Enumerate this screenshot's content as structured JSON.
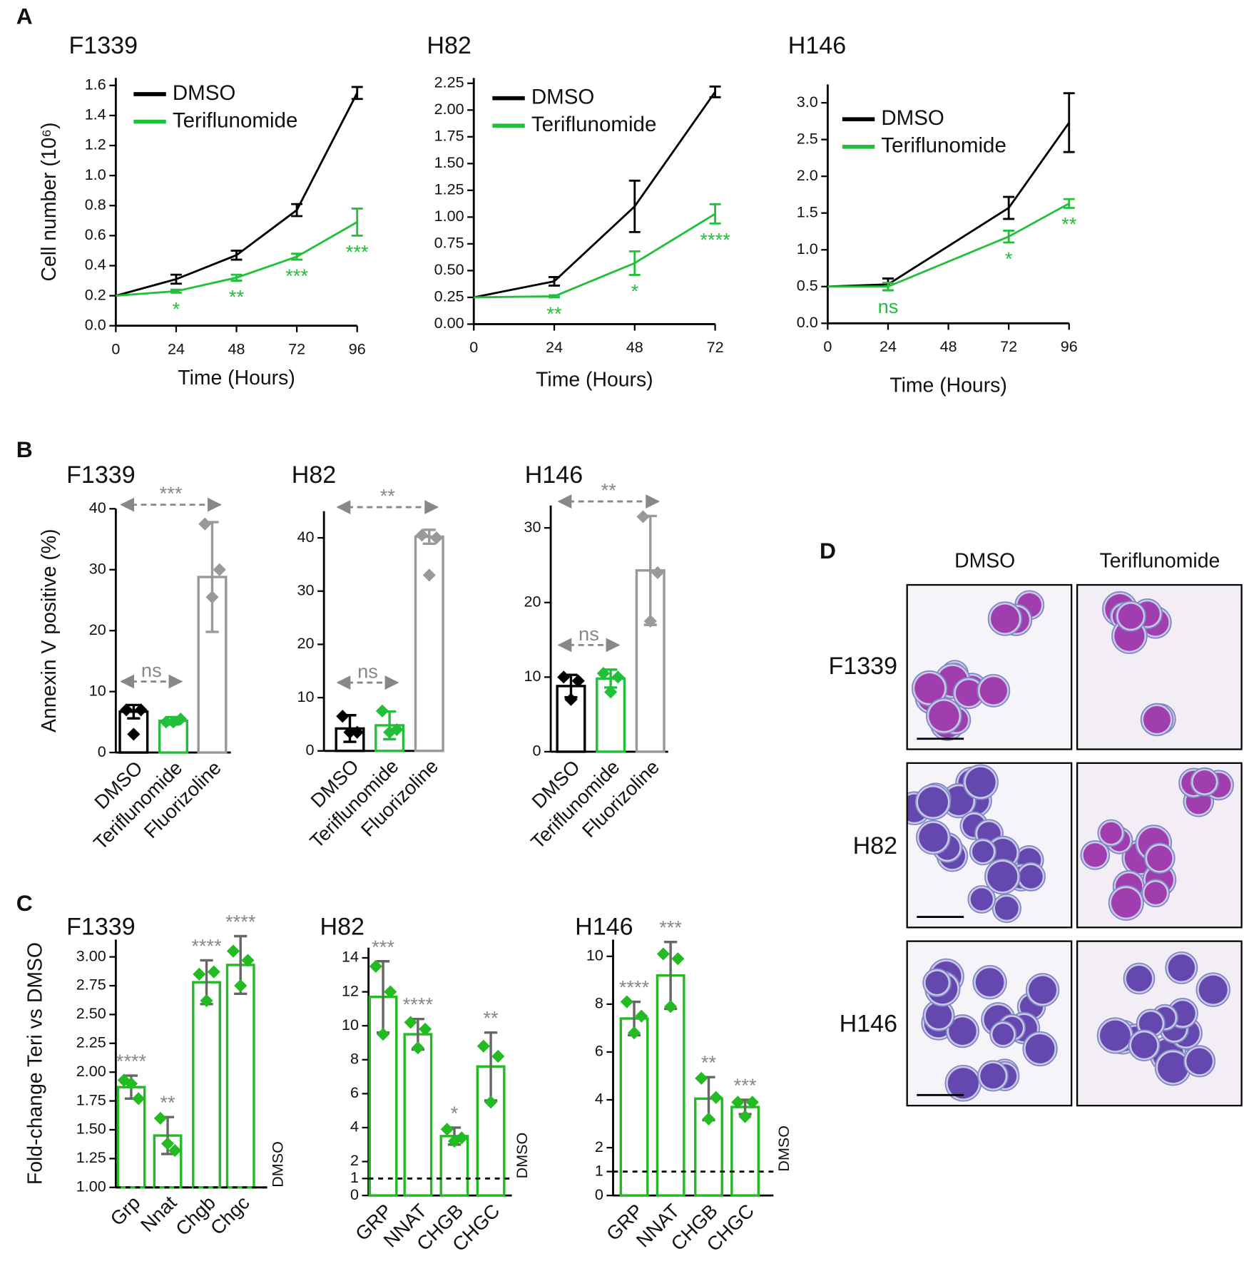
{
  "panel_labels": [
    "A",
    "B",
    "C",
    "D"
  ],
  "chart_data": [
    {
      "type": "line",
      "title": "F1339",
      "xlabel": "Time (Hours)",
      "ylabel": "Cell number (10⁶)",
      "x": [
        0,
        24,
        48,
        72,
        96
      ],
      "xlim": [
        0,
        96
      ],
      "xticks": [
        0,
        24,
        48,
        72,
        96
      ],
      "ylim": [
        0,
        1.65
      ],
      "yticks": [
        {
          "value": 0,
          "label": "0.0"
        },
        0.2,
        0.4,
        0.6,
        0.8,
        {
          "value": 1,
          "label": "1.0"
        },
        1.2,
        1.4,
        1.6
      ],
      "legend": "upper left",
      "series": [
        {
          "name": "DMSO",
          "color": "#000000",
          "values": [
            0.2,
            0.31,
            0.47,
            0.77,
            1.55
          ],
          "errors": [
            null,
            0.03,
            0.03,
            0.04,
            0.04
          ]
        },
        {
          "name": "Teriflunomide",
          "color": "#22c03a",
          "values": [
            0.2,
            0.23,
            0.32,
            0.46,
            0.69
          ],
          "errors": [
            null,
            0.01,
            0.02,
            0.02,
            0.09
          ],
          "significance": [
            null,
            "*",
            "**",
            "***",
            "***"
          ]
        }
      ]
    },
    {
      "type": "line",
      "title": "H82",
      "xlabel": "Time (Hours)",
      "x": [
        0,
        24,
        48,
        72
      ],
      "xlim": [
        0,
        72
      ],
      "xticks": [
        0,
        24,
        48,
        72
      ],
      "ylim": [
        0,
        2.3
      ],
      "yticks": [
        {
          "value": 0,
          "label": "0.00"
        },
        0.25,
        {
          "value": 0.5,
          "label": "0.50"
        },
        0.75,
        {
          "value": 1,
          "label": "1.00"
        },
        1.25,
        {
          "value": 1.5,
          "label": "1.50"
        },
        1.75,
        {
          "value": 2,
          "label": "2.00"
        },
        2.25
      ],
      "legend": "upper left",
      "series": [
        {
          "name": "DMSO",
          "color": "#000000",
          "values": [
            0.25,
            0.4,
            1.1,
            2.17
          ],
          "errors": [
            null,
            0.04,
            0.24,
            0.05
          ]
        },
        {
          "name": "Teriflunomide",
          "color": "#22c03a",
          "values": [
            0.25,
            0.26,
            0.57,
            1.03
          ],
          "errors": [
            null,
            0.01,
            0.11,
            0.09
          ],
          "significance": [
            null,
            "**",
            "*",
            "****"
          ]
        }
      ]
    },
    {
      "type": "line",
      "title": "H146",
      "xlabel": "Time (Hours)",
      "x": [
        0,
        24,
        72,
        96
      ],
      "xlim": [
        0,
        96
      ],
      "xticks": [
        0,
        24,
        48,
        72,
        96
      ],
      "ylim": [
        0,
        3.25
      ],
      "yticks": [
        {
          "value": 0,
          "label": "0.0"
        },
        0.5,
        {
          "value": 1,
          "label": "1.0"
        },
        1.5,
        {
          "value": 2,
          "label": "2.0"
        },
        2.5,
        {
          "value": 3,
          "label": "3.0"
        }
      ],
      "legend": "upper left",
      "series": [
        {
          "name": "DMSO",
          "color": "#000000",
          "values": [
            0.5,
            0.53,
            1.57,
            2.73
          ],
          "errors": [
            null,
            0.08,
            0.15,
            0.4
          ]
        },
        {
          "name": "Teriflunomide",
          "color": "#22c03a",
          "values": [
            0.5,
            0.5,
            1.18,
            1.63
          ],
          "errors": [
            null,
            0.05,
            0.08,
            0.06
          ],
          "significance": [
            null,
            "ns",
            "*",
            "**"
          ]
        }
      ]
    },
    {
      "type": "bar",
      "title": "F1339",
      "ylabel": "Annexin V positive (%)",
      "categories": [
        "DMSO",
        "Teriflunomide",
        "Fluorizoline"
      ],
      "colors": [
        "#000000",
        "#22c03a",
        "#999999"
      ],
      "values": [
        6.7,
        5.2,
        28.8
      ],
      "errors": [
        1.1,
        0.6,
        9
      ],
      "points": [
        [
          7,
          7,
          3
        ],
        [
          5,
          5.5,
          5
        ],
        [
          37.5,
          30,
          25.5
        ]
      ],
      "ylim": [
        0,
        40
      ],
      "yticks": [
        0,
        10,
        20,
        30,
        40
      ],
      "comparisons": [
        {
          "label": "***",
          "between": [
            "DMSO",
            "Fluorizoline"
          ]
        },
        {
          "label": "ns",
          "between": [
            "DMSO",
            "Teriflunomide"
          ]
        }
      ]
    },
    {
      "type": "bar",
      "title": "H82",
      "categories": [
        "DMSO",
        "Teriflunomide",
        "Fluorizoline"
      ],
      "colors": [
        "#000000",
        "#22c03a",
        "#999999"
      ],
      "values": [
        4.2,
        4.8,
        40.2
      ],
      "errors": [
        2.5,
        2.6,
        1.3
      ],
      "points": [
        [
          6.5,
          3.5,
          3.5
        ],
        [
          7.5,
          4,
          3.5
        ],
        [
          40.5,
          40,
          33
        ]
      ],
      "ylim": [
        0,
        45
      ],
      "yticks": [
        0,
        10,
        20,
        30,
        40
      ],
      "comparisons": [
        {
          "label": "**",
          "between": [
            "DMSO",
            "Fluorizoline"
          ]
        },
        {
          "label": "ns",
          "between": [
            "DMSO",
            "Teriflunomide"
          ]
        }
      ]
    },
    {
      "type": "bar",
      "title": "H146",
      "categories": [
        "DMSO",
        "Teriflunomide",
        "Fluorizoline"
      ],
      "colors": [
        "#000000",
        "#22c03a",
        "#999999"
      ],
      "values": [
        8.8,
        9.8,
        24.3
      ],
      "errors": [
        1.5,
        1.2,
        7.3
      ],
      "points": [
        [
          10,
          9.5,
          7
        ],
        [
          10.5,
          10,
          8
        ],
        [
          31.5,
          24,
          17.5
        ]
      ],
      "ylim": [
        0,
        33
      ],
      "yticks": [
        0,
        10,
        20,
        30
      ],
      "comparisons": [
        {
          "label": "**",
          "between": [
            "DMSO",
            "Fluorizoline"
          ]
        },
        {
          "label": "ns",
          "between": [
            "DMSO",
            "Teriflunomide"
          ]
        }
      ]
    },
    {
      "type": "bar",
      "title": "F1339",
      "ylabel": "Fold-change Teri vs DMSO",
      "categories": [
        "Grp",
        "Nnat",
        "Chgb",
        "Chgc"
      ],
      "color": "#22bb22",
      "error_color": "#666666",
      "values": [
        1.87,
        1.45,
        2.78,
        2.93
      ],
      "errors": [
        0.1,
        0.16,
        0.19,
        0.25
      ],
      "points": [
        [
          1.93,
          1.77,
          1.9
        ],
        [
          1.6,
          1.32,
          1.38
        ],
        [
          2.85,
          2.87,
          2.62
        ],
        [
          3.05,
          2.97,
          2.75
        ]
      ],
      "significance": [
        "****",
        "**",
        "****",
        "****"
      ],
      "ylim": [
        1,
        3.15
      ],
      "yticks": [
        {
          "value": 1,
          "label": "1.00"
        },
        1.25,
        {
          "value": 1.5,
          "label": "1.50"
        },
        1.75,
        {
          "value": 2,
          "label": "2.00"
        },
        2.25,
        {
          "value": 2.5,
          "label": "2.50"
        },
        2.75,
        {
          "value": 3,
          "label": "3.00"
        }
      ],
      "reference": 1,
      "reference_label": "DMSO"
    },
    {
      "type": "bar",
      "title": "H82",
      "categories": [
        "GRP",
        "NNAT",
        "CHGB",
        "CHGC"
      ],
      "color": "#22bb22",
      "error_color": "#666666",
      "values": [
        11.7,
        9.5,
        3.5,
        7.6
      ],
      "errors": [
        2.1,
        0.9,
        0.5,
        2.0
      ],
      "points": [
        [
          13.5,
          12,
          9.5
        ],
        [
          10.2,
          9.8,
          8.7
        ],
        [
          3.9,
          3.4,
          3.2
        ],
        [
          8.8,
          8.2,
          5.5
        ]
      ],
      "significance": [
        "***",
        "****",
        "*",
        "**"
      ],
      "ylim": [
        0,
        14.6
      ],
      "yticks": [
        0,
        1,
        2,
        4,
        6,
        8,
        10,
        12,
        14
      ],
      "reference": 1,
      "reference_label": "DMSO"
    },
    {
      "type": "bar",
      "title": "H146",
      "categories": [
        "GRP",
        "NNAT",
        "CHGB",
        "CHGC"
      ],
      "color": "#22bb22",
      "error_color": "#666666",
      "values": [
        7.4,
        9.2,
        4.05,
        3.7
      ],
      "errors": [
        0.7,
        1.4,
        0.9,
        0.3
      ],
      "points": [
        [
          8.1,
          7.5,
          6.8
        ],
        [
          10.1,
          9.9,
          7.9
        ],
        [
          4.9,
          4.1,
          3.2
        ],
        [
          3.9,
          3.9,
          3.3
        ]
      ],
      "significance": [
        "****",
        "***",
        "**",
        "***"
      ],
      "ylim": [
        0,
        10.7
      ],
      "yticks": [
        0,
        1,
        2,
        4,
        6,
        8,
        10
      ],
      "reference": 1,
      "reference_label": "DMSO"
    }
  ],
  "image_grid": {
    "columns": [
      "DMSO",
      "Teriflunomide"
    ],
    "rows": [
      "F1339",
      "H82",
      "H146"
    ]
  }
}
